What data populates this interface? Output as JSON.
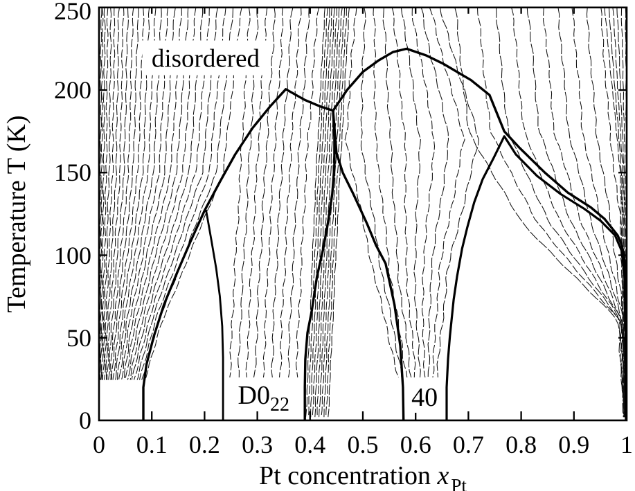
{
  "colors": {
    "ink": "#000000",
    "thin_line": "#101010",
    "background": "#ffffff"
  },
  "chart_data": {
    "type": "line",
    "title": "",
    "xlabel_main": "Pt concentration ",
    "xlabel_var": "x",
    "xlabel_sub": "Pt",
    "ylabel": "Temperature T (K)",
    "xlim": [
      0,
      1
    ],
    "ylim": [
      0,
      250
    ],
    "grid": false,
    "x_ticks": [
      0,
      0.1,
      0.2,
      0.3,
      0.4,
      0.5,
      0.6,
      0.7,
      0.8,
      0.9,
      1
    ],
    "x_tick_labels": [
      "0",
      "0.1",
      "0.2",
      "0.3",
      "0.4",
      "0.5",
      "0.6",
      "0.7",
      "0.8",
      "0.9",
      "1"
    ],
    "y_ticks": [
      0,
      50,
      100,
      150,
      200,
      250
    ],
    "y_tick_labels": [
      "0",
      "50",
      "100",
      "150",
      "200",
      "250"
    ],
    "labels": {
      "disordered": {
        "text": "disordered",
        "x": 0.202,
        "T": 219
      },
      "d022": {
        "main": "D0",
        "sub": "22",
        "x": 0.312,
        "T": 15
      },
      "p40": {
        "text": "40",
        "x": 0.617,
        "T": 14
      }
    },
    "phase_boundaries": [
      {
        "name": "left-dome-D022",
        "peak": [
          0.354,
          200.5
        ],
        "width": 3.4,
        "points": [
          [
            0.084,
            0
          ],
          [
            0.084,
            20
          ],
          [
            0.09,
            34
          ],
          [
            0.104,
            51
          ],
          [
            0.123,
            70
          ],
          [
            0.146,
            88
          ],
          [
            0.173,
            108
          ],
          [
            0.2,
            127
          ],
          [
            0.23,
            145
          ],
          [
            0.258,
            161
          ],
          [
            0.291,
            177
          ],
          [
            0.324,
            190
          ],
          [
            0.354,
            200.5
          ],
          [
            0.39,
            194
          ],
          [
            0.42,
            190
          ],
          [
            0.4436,
            187.5
          ],
          [
            0.45,
            162
          ],
          [
            0.462,
            150
          ],
          [
            0.482,
            137
          ],
          [
            0.508,
            119
          ],
          [
            0.525,
            106
          ],
          [
            0.543,
            95
          ],
          [
            0.56,
            70
          ],
          [
            0.571,
            45
          ],
          [
            0.576,
            20
          ],
          [
            0.577,
            0
          ]
        ]
      },
      {
        "name": "right-dome-40",
        "peak": [
          0.583,
          225
        ],
        "width": 3.4,
        "points": [
          [
            0.39,
            0
          ],
          [
            0.39,
            20
          ],
          [
            0.391,
            37
          ],
          [
            0.395,
            53
          ],
          [
            0.403,
            66
          ],
          [
            0.413,
            87
          ],
          [
            0.425,
            104
          ],
          [
            0.434,
            120
          ],
          [
            0.442,
            137
          ],
          [
            0.446,
            154
          ],
          [
            0.446,
            171
          ],
          [
            0.4436,
            187.5
          ],
          [
            0.47,
            200
          ],
          [
            0.5,
            211
          ],
          [
            0.53,
            218
          ],
          [
            0.557,
            223
          ],
          [
            0.583,
            225
          ],
          [
            0.62,
            221
          ],
          [
            0.652,
            216
          ],
          [
            0.705,
            206
          ],
          [
            0.74,
            197
          ],
          [
            0.768,
            175
          ],
          [
            0.797,
            165
          ],
          [
            0.845,
            150
          ],
          [
            0.888,
            138
          ],
          [
            0.932,
            129
          ],
          [
            0.958,
            122
          ],
          [
            0.983,
            112
          ],
          [
            0.991,
            106
          ],
          [
            0.996,
            97
          ],
          [
            0.9974,
            78
          ],
          [
            0.998,
            45
          ],
          [
            0.9987,
            0
          ]
        ]
      },
      {
        "name": "small-dome-right",
        "peak": [
          0.768,
          172
        ],
        "width": 3.2,
        "points": [
          [
            0.6588,
            0
          ],
          [
            0.6588,
            20
          ],
          [
            0.6614,
            37
          ],
          [
            0.665,
            51
          ],
          [
            0.672,
            73
          ],
          [
            0.6785,
            87
          ],
          [
            0.688,
            104
          ],
          [
            0.698,
            117
          ],
          [
            0.711,
            132
          ],
          [
            0.727,
            146
          ],
          [
            0.748,
            159
          ],
          [
            0.768,
            172
          ],
          [
            0.79,
            161
          ],
          [
            0.83,
            148
          ],
          [
            0.875,
            137
          ],
          [
            0.92,
            128
          ],
          [
            0.95,
            121
          ],
          [
            0.978,
            112
          ],
          [
            0.99,
            103
          ],
          [
            0.9955,
            90
          ],
          [
            0.998,
            60
          ],
          [
            0.999,
            25
          ],
          [
            0.999,
            0
          ]
        ]
      },
      {
        "name": "eutectoid-branch",
        "peak": null,
        "width": 2.8,
        "points": [
          [
            0.203,
            127
          ],
          [
            0.213,
            109
          ],
          [
            0.222,
            92
          ],
          [
            0.229,
            75
          ],
          [
            0.2335,
            57
          ],
          [
            0.235,
            38
          ],
          [
            0.235,
            0
          ]
        ]
      }
    ],
    "thin_line_groups": [
      {
        "name": "left-fan",
        "count": 26,
        "gamma": 1.45,
        "T_anchors": [
          250,
          150,
          60,
          20
        ],
        "x_start": [
          0.004,
          0.003,
          0.002,
          0.002
        ],
        "x_end": [
          0.27,
          0.235,
          0.12,
          0.082
        ],
        "wobble": 0.8
      },
      {
        "name": "d022-fan",
        "count": 9,
        "gamma": 1.0,
        "T_anchors": [
          250,
          150,
          60,
          26
        ],
        "x_start": [
          0.285,
          0.268,
          0.252,
          0.249
        ],
        "x_end": [
          0.415,
          0.392,
          0.378,
          0.374
        ],
        "wobble": 1.3
      },
      {
        "name": "center-bundle",
        "count": 11,
        "gamma": 1.0,
        "T_anchors": [
          250,
          140,
          0
        ],
        "x_start": [
          0.428,
          0.41,
          0.392
        ],
        "x_end": [
          0.474,
          0.455,
          0.434
        ],
        "wobble": 0.45
      },
      {
        "name": "fan-40",
        "count": 10,
        "gamma": 1.0,
        "T_anchors": [
          250,
          170,
          90,
          25
        ],
        "x_start": [
          0.486,
          0.468,
          0.52,
          0.568
        ],
        "x_end": [
          0.645,
          0.72,
          0.66,
          0.64
        ],
        "wobble": 1.3
      },
      {
        "name": "right-sweep",
        "count": 10,
        "gamma": 0.85,
        "T_anchors": [
          250,
          175,
          120,
          60,
          0
        ],
        "x_start": [
          0.675,
          0.7,
          0.8,
          0.985,
          0.994
        ],
        "x_end": [
          0.95,
          0.968,
          0.988,
          0.996,
          0.9985
        ],
        "wobble": 1.1
      },
      {
        "name": "edge-bundle",
        "count": 6,
        "gamma": 1.0,
        "T_anchors": [
          250,
          150,
          0
        ],
        "x_start": [
          0.958,
          0.988,
          0.995
        ],
        "x_end": [
          0.998,
          0.9995,
          0.9995
        ],
        "wobble": 0.35
      }
    ],
    "white_masks": [
      {
        "x0": 0.001,
        "x1": 0.379,
        "T0": 0,
        "T1": 24.5
      },
      {
        "x0": 0.545,
        "x1": 0.656,
        "T0": 0,
        "T1": 25.5
      },
      {
        "x0": 0.082,
        "x1": 0.326,
        "T0": 209,
        "T1": 230
      }
    ]
  }
}
